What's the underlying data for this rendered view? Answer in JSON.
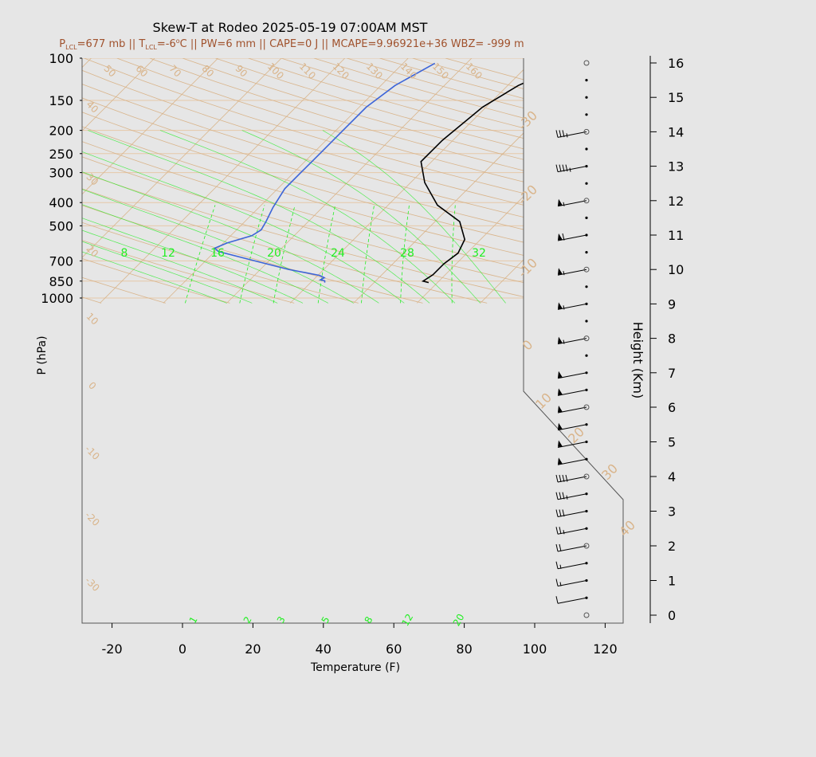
{
  "chart_data": {
    "type": "line",
    "title": "Skew-T at Rodeo 2025-05-19 07:00AM MST",
    "subtitle": {
      "p_lcl_prefix": "P",
      "p_lcl_sub": "LCL",
      "p_lcl_value": "=677 mb || ",
      "t_lcl_prefix": "T",
      "t_lcl_sub": "LCL",
      "t_lcl_value": "=-6",
      "t_lcl_unit": "C || PW=6 mm || CAPE=0 J || MCAPE=9.96921e+36 WBZ= -999 m"
    },
    "xlabel": "Temperature (F)",
    "ylabel": "P (hPa)",
    "y2label": "Height (Km)",
    "xlim": [
      -28,
      125
    ],
    "ylim": [
      1050,
      100
    ],
    "x_ticks": [
      -20,
      0,
      20,
      40,
      60,
      80,
      100,
      120
    ],
    "pressure_ticks": [
      100,
      150,
      200,
      250,
      300,
      400,
      500,
      700,
      850,
      1000
    ],
    "height_ticks": [
      0,
      1,
      2,
      3,
      4,
      5,
      6,
      7,
      8,
      9,
      10,
      11,
      12,
      13,
      14,
      15,
      16
    ],
    "isotherm_labels_top": [
      "50",
      "60",
      "70",
      "80",
      "90",
      "100",
      "110",
      "120",
      "130",
      "140",
      "150",
      "160"
    ],
    "isotherm_labels_left": [
      "40",
      "30",
      "20",
      "10",
      "0",
      "-10",
      "-20",
      "-30"
    ],
    "isotherm_labels_right": [
      "-30",
      "-20",
      "-10",
      "0",
      "10",
      "20",
      "30",
      "40"
    ],
    "mixing_ratio_top_labels": [
      "8",
      "12",
      "16",
      "20",
      "24",
      "28",
      "32"
    ],
    "mixing_ratio_bottom_labels": [
      "1",
      "2",
      "3",
      "5",
      "8",
      "12",
      "20"
    ],
    "series": [
      {
        "name": "",
        "color": "#000000",
        "points": [
          [
            65.5,
            862
          ],
          [
            63.5,
            850
          ],
          [
            64.5,
            800
          ],
          [
            64.5,
            720
          ],
          [
            65.5,
            650
          ],
          [
            63.5,
            570
          ],
          [
            57,
            480
          ],
          [
            46,
            410
          ],
          [
            36,
            330
          ],
          [
            29,
            270
          ],
          [
            29,
            220
          ],
          [
            31,
            160
          ],
          [
            35,
            130
          ],
          [
            41,
            110
          ],
          [
            45,
            100
          ]
        ]
      },
      {
        "name": "",
        "color": "#3c64d8",
        "points": [
          [
            36,
            862
          ],
          [
            35.5,
            848
          ],
          [
            34,
            840
          ],
          [
            34.5,
            823
          ],
          [
            32.5,
            805
          ],
          [
            22,
            760
          ],
          [
            10,
            700
          ],
          [
            -3,
            640
          ],
          [
            -5,
            620
          ],
          [
            -3,
            590
          ],
          [
            2,
            550
          ],
          [
            3,
            520
          ],
          [
            2,
            480
          ],
          [
            0,
            420
          ],
          [
            -2,
            350
          ],
          [
            -2,
            300
          ],
          [
            -2,
            250
          ],
          [
            -2,
            200
          ],
          [
            -2,
            160
          ],
          [
            0,
            130
          ],
          [
            5,
            105
          ]
        ]
      }
    ],
    "wind_barbs": [
      {
        "height_km": 0.5,
        "speed_kt": 10
      },
      {
        "height_km": 1.0,
        "speed_kt": 15
      },
      {
        "height_km": 1.5,
        "speed_kt": 15
      },
      {
        "height_km": 2.0,
        "speed_kt": 20
      },
      {
        "height_km": 2.5,
        "speed_kt": 25
      },
      {
        "height_km": 3.0,
        "speed_kt": 30
      },
      {
        "height_km": 3.5,
        "speed_kt": 35
      },
      {
        "height_km": 4.0,
        "speed_kt": 40
      },
      {
        "height_km": 4.5,
        "speed_kt": 50
      },
      {
        "height_km": 5.0,
        "speed_kt": 50
      },
      {
        "height_km": 5.5,
        "speed_kt": 50
      },
      {
        "height_km": 6.0,
        "speed_kt": 50
      },
      {
        "height_km": 6.5,
        "speed_kt": 50
      },
      {
        "height_km": 7.0,
        "speed_kt": 50
      },
      {
        "height_km": 8.0,
        "speed_kt": 55
      },
      {
        "height_km": 9.0,
        "speed_kt": 55
      },
      {
        "height_km": 10.0,
        "speed_kt": 55
      },
      {
        "height_km": 11.0,
        "speed_kt": 60
      },
      {
        "height_km": 12.0,
        "speed_kt": 55
      },
      {
        "height_km": 13.0,
        "speed_kt": 45
      },
      {
        "height_km": 14.0,
        "speed_kt": 35
      }
    ],
    "grid": true,
    "colors": {
      "background": "#e6e6e6",
      "isotherm": "#d9b48a",
      "isobar": "#e6c8a8",
      "mixing_ratio": "#22ee22",
      "subtitle": "#a0522d"
    }
  }
}
